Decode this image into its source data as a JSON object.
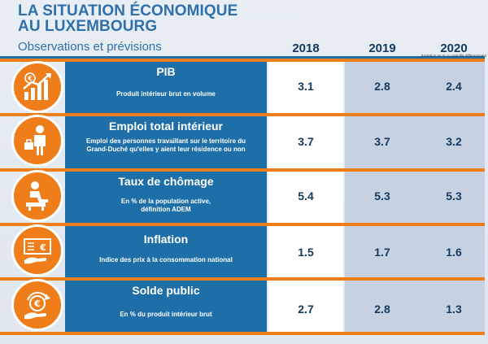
{
  "header": {
    "title_line1": "LA SITUATION ÉCONOMIQUE",
    "title_line2": "AU LUXEMBOURG",
    "subtitle": "Observations et prévisions",
    "note": "Évolution en % ou spécifié différemment"
  },
  "colors": {
    "accent_orange": "#ef7d1a",
    "panel_blue": "#1e6fa8",
    "text_navy": "#13395f",
    "band_gray": "#c6d1e1"
  },
  "chart_data": {
    "type": "table",
    "title": "LA SITUATION ÉCONOMIQUE AU LUXEMBOURG",
    "subtitle": "Observations et prévisions",
    "columns": [
      "2018",
      "2019",
      "2020"
    ],
    "rows": [
      {
        "indicator": "PIB",
        "description": "Produit intérieur brut en volume",
        "icon": "euro-growth-chart-icon",
        "values": [
          "3.1",
          "2.8",
          "2.4"
        ]
      },
      {
        "indicator": "Emploi total intérieur",
        "description_line1": "Emploi des personnes travaillant sur le territoire du",
        "description_line2": "Grand-Duché qu'elles y aient leur résidence ou non",
        "icon": "worker-briefcase-icon",
        "values": [
          "3.7",
          "3.7",
          "3.2"
        ]
      },
      {
        "indicator": "Taux de chômage",
        "description_line1": "En % de la population active,",
        "description_line2": "définition ADEM",
        "icon": "seated-person-icon",
        "values": [
          "5.4",
          "5.3",
          "5.3"
        ]
      },
      {
        "indicator": "Inflation",
        "description": "Indice des prix à la consommation national",
        "icon": "euro-note-hand-icon",
        "values": [
          "1.5",
          "1.7",
          "1.6"
        ]
      },
      {
        "indicator": "Solde public",
        "description": "En % du produit intérieur brut",
        "icon": "euro-coin-hand-icon",
        "values": [
          "2.7",
          "2.8",
          "1.3"
        ]
      }
    ]
  }
}
